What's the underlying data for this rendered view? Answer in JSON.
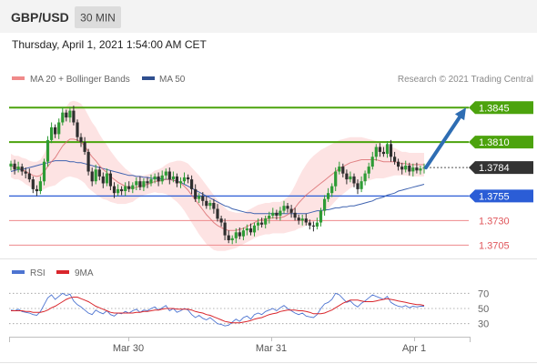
{
  "header": {
    "symbol": "GBP/USD",
    "timeframe": "30 MIN",
    "datetime": "Thursday, April 1, 2021 1:54:00 AM CET"
  },
  "legend": {
    "ma20": "MA 20 + Bollinger Bands",
    "ma50": "MA 50",
    "copyright": "Research © 2021 Trading Central",
    "rsi": "RSI",
    "ma9": "9MA"
  },
  "colors": {
    "green": "#4ca30d",
    "blue": "#2b5dd6",
    "red": "#e0565b",
    "dark": "#333333",
    "candle_up": "#2e9b35",
    "candle_down": "#2e2e2e",
    "band_fill": "#fcd9d9",
    "ma50_color": "#3f63b0",
    "ma20_color": "#d9696c",
    "rsi_color": "#4d74d1",
    "ma9_color": "#d9262c",
    "arrow": "#2e6db3"
  },
  "chart_data": {
    "type": "candlestick",
    "ylim": [
      1.3697,
      1.3862
    ],
    "price_levels": [
      {
        "label": "1.3845",
        "value": 1.3845,
        "style": "resistance-green"
      },
      {
        "label": "1.3810",
        "value": 1.381,
        "style": "resistance-green"
      },
      {
        "label": "1.3784",
        "value": 1.3784,
        "style": "current"
      },
      {
        "label": "1.3755",
        "value": 1.3755,
        "style": "support-blue"
      },
      {
        "label": "1.3730",
        "value": 1.373,
        "style": "support-red"
      },
      {
        "label": "1.3705",
        "value": 1.3705,
        "style": "support-red"
      }
    ],
    "x_ticks": [
      "Mar 30",
      "Mar 31",
      "Apr 1"
    ],
    "close": [
      1.3788,
      1.3782,
      1.3785,
      1.378,
      1.3778,
      1.3772,
      1.3762,
      1.376,
      1.377,
      1.379,
      1.3812,
      1.3825,
      1.3818,
      1.383,
      1.384,
      1.3835,
      1.3842,
      1.383,
      1.3815,
      1.381,
      1.38,
      1.378,
      1.377,
      1.3782,
      1.3775,
      1.3768,
      1.3778,
      1.3765,
      1.3758,
      1.3762,
      1.376,
      1.3765,
      1.3762,
      1.3766,
      1.377,
      1.3764,
      1.377,
      1.3768,
      1.3772,
      1.3775,
      1.377,
      1.3776,
      1.378,
      1.3772,
      1.3775,
      1.3768,
      1.377,
      1.3774,
      1.3772,
      1.3762,
      1.3752,
      1.3755,
      1.375,
      1.3745,
      1.3748,
      1.3742,
      1.3732,
      1.3728,
      1.3715,
      1.371,
      1.3712,
      1.3718,
      1.3714,
      1.372,
      1.3722,
      1.3718,
      1.3725,
      1.3728,
      1.3726,
      1.3732,
      1.3735,
      1.3738,
      1.3735,
      1.374,
      1.3745,
      1.3742,
      1.3738,
      1.3733,
      1.373,
      1.3732,
      1.3728,
      1.3725,
      1.3724,
      1.3728,
      1.374,
      1.3752,
      1.3758,
      1.3765,
      1.378,
      1.3785,
      1.3778,
      1.3772,
      1.3775,
      1.3768,
      1.3762,
      1.377,
      1.3778,
      1.3785,
      1.3795,
      1.3805,
      1.38,
      1.3798,
      1.3808,
      1.3795,
      1.379,
      1.3785,
      1.3782,
      1.3786,
      1.378,
      1.3784,
      1.3781,
      1.3783,
      1.3784
    ],
    "ma20": [
      1.3786,
      1.3784,
      1.3784,
      1.3782,
      1.378,
      1.3778,
      1.3776,
      1.3775,
      1.3776,
      1.378,
      1.3785,
      1.379,
      1.3794,
      1.38,
      1.3806,
      1.381,
      1.3813,
      1.3813,
      1.3812,
      1.381,
      1.3806,
      1.38,
      1.3795,
      1.3791,
      1.3786,
      1.3782,
      1.3779,
      1.3775,
      1.3772,
      1.3769,
      1.3767,
      1.3765,
      1.3764,
      1.3763,
      1.3764,
      1.3765,
      1.3766,
      1.3767,
      1.3768,
      1.377,
      1.377,
      1.3771,
      1.3772,
      1.3772,
      1.3771,
      1.377,
      1.3768,
      1.3765,
      1.3761,
      1.3756,
      1.3751,
      1.3746,
      1.3741,
      1.3736,
      1.3732,
      1.3728,
      1.3725,
      1.3723,
      1.3721,
      1.372,
      1.372,
      1.372,
      1.3721,
      1.3722,
      1.3724,
      1.3726,
      1.3728,
      1.373,
      1.3731,
      1.3732,
      1.3732,
      1.3733,
      1.3733,
      1.3733,
      1.3734,
      1.3736,
      1.3739,
      1.3743,
      1.3748,
      1.3752,
      1.3756,
      1.3759,
      1.3762,
      1.3765,
      1.3768,
      1.3771,
      1.3774,
      1.3777,
      1.378,
      1.3783,
      1.3785,
      1.3787,
      1.3789,
      1.379,
      1.3791,
      1.3792,
      1.3792,
      1.3792,
      1.3792,
      1.3792,
      1.3791,
      1.379,
      1.379,
      1.379,
      1.379,
      1.3789,
      1.3788,
      1.3788,
      1.3787,
      1.3787,
      1.3787,
      1.3787,
      1.3787
    ],
    "ma50": [
      1.378,
      1.3781,
      1.3782,
      1.3782,
      1.3783,
      1.3784,
      1.3785,
      1.3786,
      1.3787,
      1.3788,
      1.3789,
      1.379,
      1.3791,
      1.3791,
      1.3791,
      1.3791,
      1.379,
      1.379,
      1.3789,
      1.3789,
      1.3788,
      1.3787,
      1.3786,
      1.3785,
      1.3784,
      1.3783,
      1.3782,
      1.3781,
      1.378,
      1.3779,
      1.3778,
      1.3777,
      1.3776,
      1.3776,
      1.3775,
      1.3775,
      1.3774,
      1.3774,
      1.3773,
      1.3773,
      1.3773,
      1.3772,
      1.3772,
      1.3772,
      1.3771,
      1.377,
      1.3769,
      1.3767,
      1.3765,
      1.3763,
      1.3761,
      1.3759,
      1.3757,
      1.3755,
      1.3753,
      1.3751,
      1.3749,
      1.3747,
      1.3745,
      1.3744,
      1.3742,
      1.3741,
      1.374,
      1.3739,
      1.3738,
      1.3738,
      1.3737,
      1.3737,
      1.3737,
      1.3737,
      1.3737,
      1.3737,
      1.3737,
      1.3737,
      1.3737,
      1.3737,
      1.3737,
      1.3737,
      1.3737,
      1.3737,
      1.3737,
      1.3738,
      1.3739,
      1.374,
      1.374,
      1.3741,
      1.3741,
      1.3742,
      1.3743,
      1.3743,
      1.3744,
      1.3744,
      1.3745,
      1.3745,
      1.3746,
      1.3747,
      1.3748,
      1.3749,
      1.375,
      1.3752,
      1.3753,
      1.3754,
      1.3756,
      1.3757,
      1.3758,
      1.376,
      1.3761,
      1.3762,
      1.3763,
      1.3764,
      1.3765,
      1.3766,
      1.3767
    ],
    "bb_half_width": [
      0.0012,
      0.0012,
      0.0012,
      0.0012,
      0.0013,
      0.0013,
      0.0014,
      0.0015,
      0.0016,
      0.0018,
      0.0021,
      0.0025,
      0.0028,
      0.0031,
      0.0034,
      0.0036,
      0.0038,
      0.0039,
      0.0039,
      0.0039,
      0.0038,
      0.0037,
      0.0035,
      0.0034,
      0.0032,
      0.003,
      0.0028,
      0.0026,
      0.0024,
      0.0022,
      0.002,
      0.0018,
      0.0016,
      0.0014,
      0.0012,
      0.0011,
      0.001,
      0.001,
      0.001,
      0.0011,
      0.0012,
      0.0013,
      0.0015,
      0.0017,
      0.0019,
      0.0021,
      0.0023,
      0.0025,
      0.0027,
      0.0028,
      0.0029,
      0.003,
      0.003,
      0.003,
      0.0029,
      0.0028,
      0.0026,
      0.0024,
      0.0022,
      0.002,
      0.0019,
      0.0018,
      0.0017,
      0.0016,
      0.0016,
      0.0016,
      0.0016,
      0.0016,
      0.0016,
      0.0016,
      0.0016,
      0.0016,
      0.0016,
      0.0016,
      0.0017,
      0.0018,
      0.002,
      0.0023,
      0.0026,
      0.0029,
      0.0031,
      0.0033,
      0.0034,
      0.0034,
      0.0034,
      0.0033,
      0.0032,
      0.0031,
      0.003,
      0.0029,
      0.0028,
      0.0027,
      0.0026,
      0.0025,
      0.0024,
      0.0023,
      0.0022,
      0.0021,
      0.002,
      0.0019,
      0.0018,
      0.0017,
      0.0016,
      0.0015,
      0.0014,
      0.0013,
      0.0012,
      0.0012,
      0.0012,
      0.0012,
      0.0012,
      0.0012,
      0.0012
    ],
    "projection": {
      "from": 1.3784,
      "to": 1.3845
    },
    "rsi": {
      "ylim": [
        20,
        80
      ],
      "ticks": [
        30,
        50,
        70
      ],
      "values": [
        48,
        47,
        49,
        46,
        45,
        44,
        42,
        41,
        46,
        55,
        64,
        68,
        62,
        66,
        70,
        67,
        69,
        60,
        55,
        52,
        48,
        44,
        42,
        48,
        45,
        43,
        47,
        42,
        40,
        44,
        43,
        46,
        44,
        47,
        49,
        45,
        48,
        47,
        50,
        52,
        48,
        51,
        54,
        47,
        50,
        45,
        47,
        50,
        48,
        42,
        38,
        41,
        37,
        35,
        38,
        34,
        30,
        29,
        27,
        28,
        32,
        36,
        33,
        38,
        40,
        36,
        42,
        44,
        42,
        46,
        48,
        50,
        47,
        51,
        54,
        50,
        47,
        44,
        42,
        44,
        40,
        39,
        38,
        42,
        50,
        56,
        58,
        62,
        70,
        68,
        63,
        58,
        60,
        55,
        52,
        57,
        60,
        64,
        68,
        66,
        64,
        62,
        66,
        58,
        55,
        53,
        52,
        54,
        51,
        53,
        52,
        53,
        53
      ],
      "ma9": [
        47,
        47,
        47,
        47,
        46,
        46,
        45,
        45,
        45,
        46,
        48,
        51,
        53,
        56,
        59,
        62,
        64,
        65,
        65,
        63,
        61,
        59,
        56,
        53,
        51,
        49,
        47,
        45,
        44,
        44,
        44,
        44,
        44,
        44,
        45,
        45,
        46,
        46,
        47,
        48,
        48,
        49,
        50,
        50,
        50,
        49,
        49,
        49,
        49,
        48,
        46,
        45,
        44,
        42,
        41,
        39,
        37,
        35,
        33,
        32,
        31,
        31,
        31,
        32,
        33,
        34,
        36,
        37,
        38,
        40,
        42,
        43,
        44,
        46,
        47,
        48,
        48,
        48,
        47,
        47,
        46,
        45,
        43,
        43,
        43,
        44,
        46,
        48,
        51,
        54,
        57,
        59,
        61,
        61,
        61,
        60,
        59,
        59,
        59,
        60,
        61,
        62,
        63,
        62,
        61,
        60,
        59,
        58,
        57,
        56,
        55,
        55,
        54
      ]
    }
  }
}
